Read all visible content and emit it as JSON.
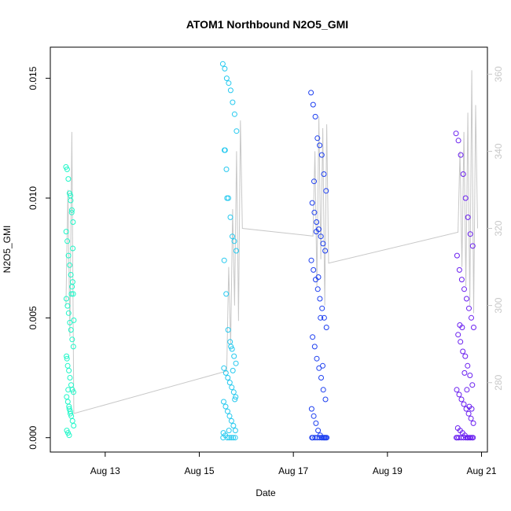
{
  "chart_data": {
    "type": "scatter",
    "title": "ATOM1 Northbound N2O5_GMI",
    "xlabel": "Date",
    "ylabel": "N2O5_GMI",
    "x_ticks": [
      "Aug 13",
      "Aug 15",
      "Aug 17",
      "Aug 19",
      "Aug 21"
    ],
    "y_ticks": [
      "0.000",
      "0.005",
      "0.010",
      "0.015"
    ],
    "y2_ticks": [
      "280",
      "300",
      "320",
      "340",
      "360"
    ],
    "xlim": [
      "2016-08-11 20:00",
      "2016-08-21 03:00"
    ],
    "ylim": [
      -0.0006,
      0.0163
    ],
    "y2lim": [
      262,
      367
    ],
    "y2_color": "#c8c8c8",
    "grid": false,
    "legend": "none",
    "series": [
      {
        "color": "#1ef7c8",
        "x_range": [
          "2016-08-12 04:00",
          "2016-08-12 08:00"
        ],
        "values": [
          0.0113,
          0.0112,
          0.0108,
          0.0102,
          0.0099,
          0.0095,
          0.009,
          0.0086,
          0.0082,
          0.0076,
          0.0072,
          0.0068,
          0.0063,
          0.006,
          0.0058,
          0.0055,
          0.0052,
          0.0048,
          0.0045,
          0.0041,
          0.0038,
          0.0034,
          0.003,
          0.0028,
          0.0025,
          0.0022,
          0.002,
          0.0019,
          0.0017,
          0.0015,
          0.0013,
          0.0011,
          0.0009,
          0.0007,
          0.0005,
          0.0003,
          0.0002,
          0.0001,
          0.001,
          0.006,
          0.0065,
          0.0049,
          0.0033,
          0.002,
          0.0012,
          0.0101,
          0.0094,
          0.0079
        ]
      },
      {
        "color": "#25c9ef",
        "x_range": [
          "2016-08-15 12:00",
          "2016-08-15 19:00"
        ],
        "values": [
          0.0156,
          0.0154,
          0.015,
          0.0148,
          0.0145,
          0.014,
          0.0135,
          0.0128,
          0.012,
          0.0112,
          0.01,
          0.0092,
          0.0084,
          0.0082,
          0.0078,
          0.0074,
          0.006,
          0.0045,
          0.004,
          0.0037,
          0.0034,
          0.0031,
          0.0029,
          0.0027,
          0.0025,
          0.0023,
          0.0021,
          0.0019,
          0.0017,
          0.0015,
          0.0013,
          0.0011,
          0.0009,
          0.0007,
          0.0005,
          0.0003,
          0.0002,
          0.0001,
          0.0,
          0.0,
          0.0,
          0.0,
          0.0,
          0.0,
          0.012,
          0.01,
          0.0003,
          0.0038,
          0.0028,
          0.0016
        ]
      },
      {
        "color": "#1d3ff0",
        "x_range": [
          "2016-08-17 09:00",
          "2016-08-17 17:00"
        ],
        "values": [
          0.0144,
          0.0139,
          0.0134,
          0.0125,
          0.0122,
          0.0118,
          0.011,
          0.0103,
          0.0098,
          0.0094,
          0.009,
          0.0087,
          0.0084,
          0.0081,
          0.0078,
          0.0074,
          0.007,
          0.0066,
          0.0062,
          0.0058,
          0.0054,
          0.005,
          0.0046,
          0.0042,
          0.0038,
          0.0033,
          0.0029,
          0.0025,
          0.002,
          0.0016,
          0.0012,
          0.0009,
          0.0006,
          0.0003,
          0.0001,
          0.0,
          0.0,
          0.0,
          0.0,
          0.0,
          0.0,
          0.0,
          0.0,
          0.0,
          0.0,
          0.0,
          0.0107,
          0.0086,
          0.0067,
          0.005,
          0.003,
          0.0
        ]
      },
      {
        "color": "#6a1ff0",
        "x_range": [
          "2016-08-20 11:00",
          "2016-08-20 20:00"
        ],
        "values": [
          0.0127,
          0.0124,
          0.0118,
          0.011,
          0.01,
          0.0092,
          0.0085,
          0.008,
          0.0076,
          0.007,
          0.0066,
          0.0062,
          0.0058,
          0.0054,
          0.005,
          0.0046,
          0.0043,
          0.004,
          0.0036,
          0.0034,
          0.003,
          0.0026,
          0.0022,
          0.002,
          0.0018,
          0.0016,
          0.0014,
          0.0012,
          0.001,
          0.0008,
          0.0006,
          0.0004,
          0.0003,
          0.0002,
          0.0001,
          0.0,
          0.0,
          0.0,
          0.0,
          0.0,
          0.0,
          0.0,
          0.0,
          0.0,
          0.0,
          0.0,
          0.0,
          0.0047,
          0.0046,
          0.0027,
          0.002,
          0.0013,
          0.0012
        ]
      }
    ],
    "secondary_line": {
      "color": "#c8c8c8",
      "points": [
        [
          "2016-08-12 04:00",
          300
        ],
        [
          "2016-08-12 05:00",
          330
        ],
        [
          "2016-08-12 06:00",
          292
        ],
        [
          "2016-08-12 07:00",
          345
        ],
        [
          "2016-08-12 08:00",
          272
        ],
        [
          "2016-08-15 14:00",
          283
        ],
        [
          "2016-08-15 15:00",
          310
        ],
        [
          "2016-08-15 16:00",
          290
        ],
        [
          "2016-08-15 17:00",
          325
        ],
        [
          "2016-08-15 18:00",
          300
        ],
        [
          "2016-08-15 19:00",
          340
        ],
        [
          "2016-08-15 20:00",
          296
        ],
        [
          "2016-08-15 21:00",
          348
        ],
        [
          "2016-08-15 22:00",
          320
        ],
        [
          "2016-08-17 10:00",
          318
        ],
        [
          "2016-08-17 11:00",
          340
        ],
        [
          "2016-08-17 12:00",
          305
        ],
        [
          "2016-08-17 13:00",
          349
        ],
        [
          "2016-08-17 14:00",
          312
        ],
        [
          "2016-08-17 15:00",
          346
        ],
        [
          "2016-08-17 16:00",
          300
        ],
        [
          "2016-08-17 17:00",
          347
        ],
        [
          "2016-08-17 18:00",
          311
        ],
        [
          "2016-08-20 12:00",
          319
        ],
        [
          "2016-08-20 13:00",
          340
        ],
        [
          "2016-08-20 14:00",
          310
        ],
        [
          "2016-08-20 15:00",
          345
        ],
        [
          "2016-08-20 16:00",
          305
        ],
        [
          "2016-08-20 17:00",
          350
        ],
        [
          "2016-08-20 18:00",
          300
        ],
        [
          "2016-08-20 19:00",
          361
        ],
        [
          "2016-08-20 20:00",
          298
        ],
        [
          "2016-08-20 21:00",
          352
        ],
        [
          "2016-08-20 22:00",
          320
        ]
      ]
    }
  }
}
